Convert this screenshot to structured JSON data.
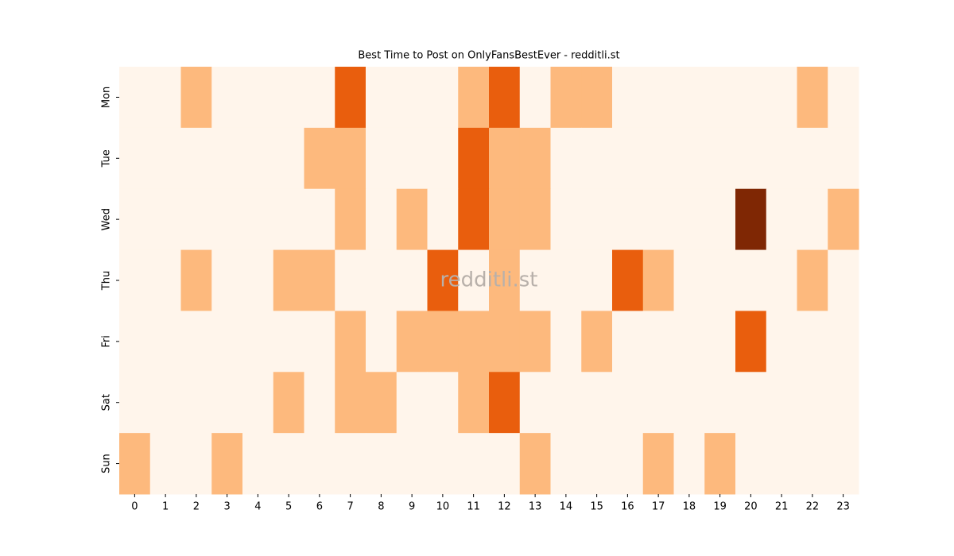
{
  "chart_data": {
    "type": "heatmap",
    "title": "Best Time to Post on OnlyFansBestEver - redditli.st",
    "watermark": "redditli.st",
    "x": [
      0,
      1,
      2,
      3,
      4,
      5,
      6,
      7,
      8,
      9,
      10,
      11,
      12,
      13,
      14,
      15,
      16,
      17,
      18,
      19,
      20,
      21,
      22,
      23
    ],
    "categories": [
      "Mon",
      "Tue",
      "Wed",
      "Thu",
      "Fri",
      "Sat",
      "Sun"
    ],
    "colors": [
      "#fff5eb",
      "#fdb97d",
      "#e95e0d",
      "#7f2704"
    ],
    "values": [
      [
        0,
        0,
        1,
        0,
        0,
        0,
        0,
        2,
        0,
        0,
        0,
        1,
        2,
        0,
        1,
        1,
        0,
        0,
        0,
        0,
        0,
        0,
        1,
        0
      ],
      [
        0,
        0,
        0,
        0,
        0,
        0,
        1,
        1,
        0,
        0,
        0,
        2,
        1,
        1,
        0,
        0,
        0,
        0,
        0,
        0,
        0,
        0,
        0,
        0
      ],
      [
        0,
        0,
        0,
        0,
        0,
        0,
        0,
        1,
        0,
        1,
        0,
        2,
        1,
        1,
        0,
        0,
        0,
        0,
        0,
        0,
        3,
        0,
        0,
        1
      ],
      [
        0,
        0,
        1,
        0,
        0,
        1,
        1,
        0,
        0,
        0,
        2,
        0,
        1,
        0,
        0,
        0,
        2,
        1,
        0,
        0,
        0,
        0,
        1,
        0
      ],
      [
        0,
        0,
        0,
        0,
        0,
        0,
        0,
        1,
        0,
        1,
        1,
        1,
        1,
        1,
        0,
        1,
        0,
        0,
        0,
        0,
        2,
        0,
        0,
        0
      ],
      [
        0,
        0,
        0,
        0,
        0,
        1,
        0,
        1,
        1,
        0,
        0,
        1,
        2,
        0,
        0,
        0,
        0,
        0,
        0,
        0,
        0,
        0,
        0,
        0
      ],
      [
        1,
        0,
        0,
        1,
        0,
        0,
        0,
        0,
        0,
        0,
        0,
        0,
        0,
        1,
        0,
        0,
        0,
        1,
        0,
        1,
        0,
        0,
        0,
        0
      ]
    ]
  }
}
